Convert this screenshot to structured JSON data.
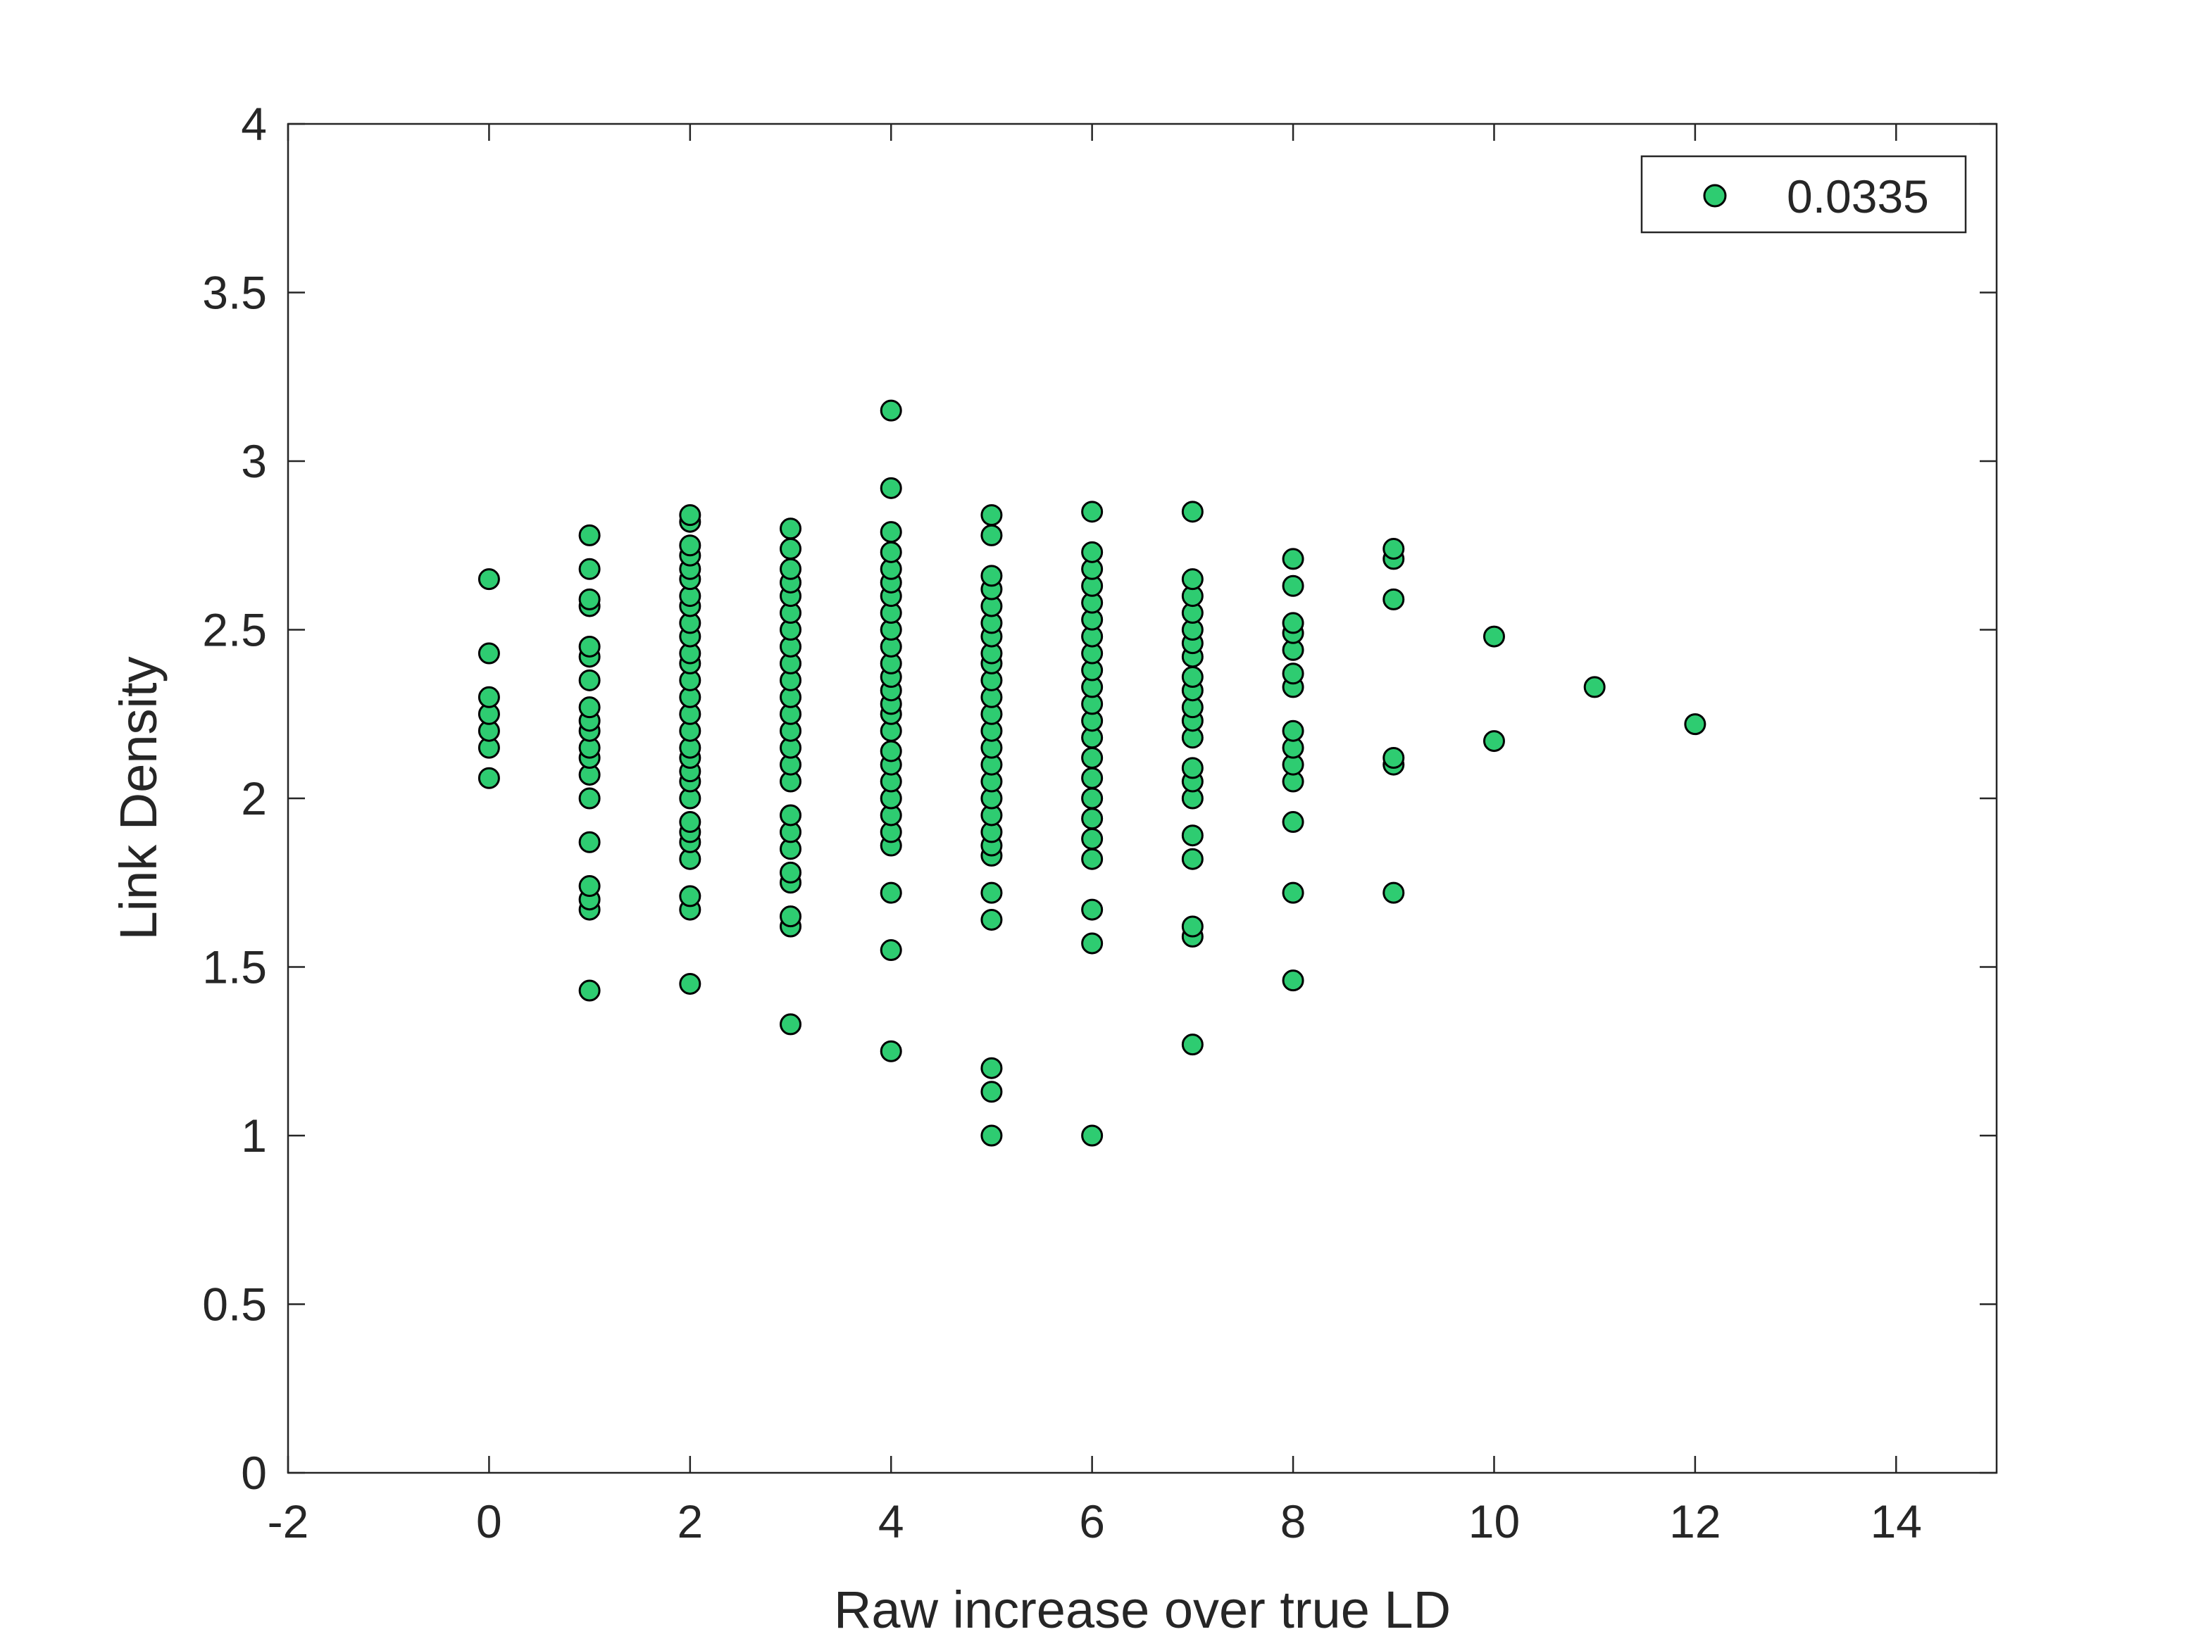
{
  "chart_data": {
    "type": "scatter",
    "title": "",
    "xlabel": "Raw increase over true LD",
    "ylabel": "Link Density",
    "xlim": [
      -2,
      15
    ],
    "ylim": [
      0,
      4
    ],
    "xticks": [
      -2,
      0,
      2,
      4,
      6,
      8,
      10,
      12,
      14
    ],
    "xtick_labels": [
      "-2",
      "0",
      "2",
      "4",
      "6",
      "8",
      "10",
      "12",
      "14"
    ],
    "yticks": [
      0,
      0.5,
      1,
      1.5,
      2,
      2.5,
      3,
      3.5,
      4
    ],
    "ytick_labels": [
      "0",
      "0.5",
      "1",
      "1.5",
      "2",
      "2.5",
      "3",
      "3.5",
      "4"
    ],
    "grid": false,
    "legend_position": "top-right",
    "marker_color": "#2ecc71",
    "marker_edge_color": "#000000",
    "series": [
      {
        "name": "0.0335",
        "points": [
          [
            0,
            2.06
          ],
          [
            0,
            2.15
          ],
          [
            0,
            2.2
          ],
          [
            0,
            2.25
          ],
          [
            0,
            2.3
          ],
          [
            0,
            2.43
          ],
          [
            0,
            2.65
          ],
          [
            1,
            1.43
          ],
          [
            1,
            1.67
          ],
          [
            1,
            1.7
          ],
          [
            1,
            1.74
          ],
          [
            1,
            1.87
          ],
          [
            1,
            2.0
          ],
          [
            1,
            2.07
          ],
          [
            1,
            2.12
          ],
          [
            1,
            2.15
          ],
          [
            1,
            2.2
          ],
          [
            1,
            2.23
          ],
          [
            1,
            2.27
          ],
          [
            1,
            2.35
          ],
          [
            1,
            2.42
          ],
          [
            1,
            2.45
          ],
          [
            1,
            2.57
          ],
          [
            1,
            2.59
          ],
          [
            1,
            2.68
          ],
          [
            1,
            2.78
          ],
          [
            2,
            1.45
          ],
          [
            2,
            1.67
          ],
          [
            2,
            1.71
          ],
          [
            2,
            1.82
          ],
          [
            2,
            1.87
          ],
          [
            2,
            1.9
          ],
          [
            2,
            1.93
          ],
          [
            2,
            2.0
          ],
          [
            2,
            2.05
          ],
          [
            2,
            2.08
          ],
          [
            2,
            2.12
          ],
          [
            2,
            2.15
          ],
          [
            2,
            2.2
          ],
          [
            2,
            2.25
          ],
          [
            2,
            2.3
          ],
          [
            2,
            2.35
          ],
          [
            2,
            2.4
          ],
          [
            2,
            2.43
          ],
          [
            2,
            2.48
          ],
          [
            2,
            2.52
          ],
          [
            2,
            2.57
          ],
          [
            2,
            2.6
          ],
          [
            2,
            2.65
          ],
          [
            2,
            2.68
          ],
          [
            2,
            2.72
          ],
          [
            2,
            2.75
          ],
          [
            2,
            2.82
          ],
          [
            2,
            2.84
          ],
          [
            3,
            1.33
          ],
          [
            3,
            1.62
          ],
          [
            3,
            1.65
          ],
          [
            3,
            1.75
          ],
          [
            3,
            1.78
          ],
          [
            3,
            1.85
          ],
          [
            3,
            1.9
          ],
          [
            3,
            1.95
          ],
          [
            3,
            2.05
          ],
          [
            3,
            2.1
          ],
          [
            3,
            2.15
          ],
          [
            3,
            2.2
          ],
          [
            3,
            2.25
          ],
          [
            3,
            2.3
          ],
          [
            3,
            2.35
          ],
          [
            3,
            2.4
          ],
          [
            3,
            2.45
          ],
          [
            3,
            2.5
          ],
          [
            3,
            2.55
          ],
          [
            3,
            2.6
          ],
          [
            3,
            2.64
          ],
          [
            3,
            2.68
          ],
          [
            3,
            2.74
          ],
          [
            3,
            2.8
          ],
          [
            4,
            1.25
          ],
          [
            4,
            1.55
          ],
          [
            4,
            1.72
          ],
          [
            4,
            1.86
          ],
          [
            4,
            1.9
          ],
          [
            4,
            1.95
          ],
          [
            4,
            2.0
          ],
          [
            4,
            2.05
          ],
          [
            4,
            2.1
          ],
          [
            4,
            2.14
          ],
          [
            4,
            2.2
          ],
          [
            4,
            2.25
          ],
          [
            4,
            2.28
          ],
          [
            4,
            2.32
          ],
          [
            4,
            2.36
          ],
          [
            4,
            2.4
          ],
          [
            4,
            2.45
          ],
          [
            4,
            2.5
          ],
          [
            4,
            2.55
          ],
          [
            4,
            2.6
          ],
          [
            4,
            2.64
          ],
          [
            4,
            2.68
          ],
          [
            4,
            2.73
          ],
          [
            4,
            2.79
          ],
          [
            4,
            2.92
          ],
          [
            4,
            3.15
          ],
          [
            5,
            1.0
          ],
          [
            5,
            1.13
          ],
          [
            5,
            1.2
          ],
          [
            5,
            1.64
          ],
          [
            5,
            1.72
          ],
          [
            5,
            1.83
          ],
          [
            5,
            1.86
          ],
          [
            5,
            1.9
          ],
          [
            5,
            1.95
          ],
          [
            5,
            2.0
          ],
          [
            5,
            2.05
          ],
          [
            5,
            2.1
          ],
          [
            5,
            2.15
          ],
          [
            5,
            2.2
          ],
          [
            5,
            2.25
          ],
          [
            5,
            2.3
          ],
          [
            5,
            2.35
          ],
          [
            5,
            2.4
          ],
          [
            5,
            2.43
          ],
          [
            5,
            2.48
          ],
          [
            5,
            2.52
          ],
          [
            5,
            2.57
          ],
          [
            5,
            2.62
          ],
          [
            5,
            2.66
          ],
          [
            5,
            2.78
          ],
          [
            5,
            2.84
          ],
          [
            6,
            1.0
          ],
          [
            6,
            1.57
          ],
          [
            6,
            1.67
          ],
          [
            6,
            1.82
          ],
          [
            6,
            1.88
          ],
          [
            6,
            1.94
          ],
          [
            6,
            2.0
          ],
          [
            6,
            2.06
          ],
          [
            6,
            2.12
          ],
          [
            6,
            2.18
          ],
          [
            6,
            2.23
          ],
          [
            6,
            2.28
          ],
          [
            6,
            2.33
          ],
          [
            6,
            2.38
          ],
          [
            6,
            2.43
          ],
          [
            6,
            2.48
          ],
          [
            6,
            2.53
          ],
          [
            6,
            2.58
          ],
          [
            6,
            2.63
          ],
          [
            6,
            2.68
          ],
          [
            6,
            2.73
          ],
          [
            6,
            2.85
          ],
          [
            7,
            1.27
          ],
          [
            7,
            1.59
          ],
          [
            7,
            1.62
          ],
          [
            7,
            1.82
          ],
          [
            7,
            1.89
          ],
          [
            7,
            2.0
          ],
          [
            7,
            2.05
          ],
          [
            7,
            2.09
          ],
          [
            7,
            2.18
          ],
          [
            7,
            2.23
          ],
          [
            7,
            2.27
          ],
          [
            7,
            2.32
          ],
          [
            7,
            2.36
          ],
          [
            7,
            2.42
          ],
          [
            7,
            2.46
          ],
          [
            7,
            2.5
          ],
          [
            7,
            2.55
          ],
          [
            7,
            2.6
          ],
          [
            7,
            2.65
          ],
          [
            7,
            2.85
          ],
          [
            8,
            1.46
          ],
          [
            8,
            1.72
          ],
          [
            8,
            1.93
          ],
          [
            8,
            2.05
          ],
          [
            8,
            2.1
          ],
          [
            8,
            2.15
          ],
          [
            8,
            2.2
          ],
          [
            8,
            2.33
          ],
          [
            8,
            2.37
          ],
          [
            8,
            2.44
          ],
          [
            8,
            2.49
          ],
          [
            8,
            2.52
          ],
          [
            8,
            2.63
          ],
          [
            8,
            2.71
          ],
          [
            9,
            1.72
          ],
          [
            9,
            2.1
          ],
          [
            9,
            2.12
          ],
          [
            9,
            2.59
          ],
          [
            9,
            2.71
          ],
          [
            9,
            2.74
          ],
          [
            10,
            2.17
          ],
          [
            10,
            2.48
          ],
          [
            11,
            2.33
          ],
          [
            12,
            2.22
          ]
        ]
      }
    ]
  }
}
